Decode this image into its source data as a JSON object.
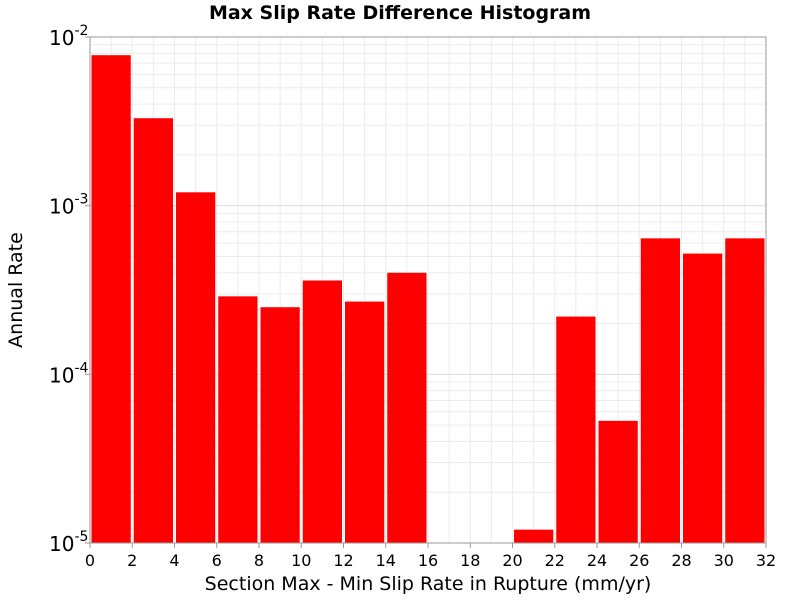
{
  "chart_data": {
    "type": "bar",
    "title": "Max Slip Rate Difference Histogram",
    "xlabel": "Section Max - Min Slip Rate in Rupture (mm/yr)",
    "ylabel": "Annual Rate",
    "x_ticks": [
      "0",
      "2",
      "4",
      "6",
      "8",
      "10",
      "12",
      "14",
      "16",
      "18",
      "20",
      "22",
      "24",
      "26",
      "28",
      "30",
      "32"
    ],
    "y_ticks": [
      {
        "base": "10",
        "exp": "-5",
        "value": 1e-05
      },
      {
        "base": "10",
        "exp": "-4",
        "value": 0.0001
      },
      {
        "base": "10",
        "exp": "-3",
        "value": 0.001
      },
      {
        "base": "10",
        "exp": "-2",
        "value": 0.01
      }
    ],
    "xlim": [
      0,
      32
    ],
    "ylim": [
      1e-05,
      0.01
    ],
    "y_scale": "log",
    "grid": true,
    "bar_color": "#ff0000",
    "bin_width": 2,
    "bins": [
      {
        "x": 1,
        "value": 0.0078
      },
      {
        "x": 3,
        "value": 0.0033
      },
      {
        "x": 5,
        "value": 0.0012
      },
      {
        "x": 7,
        "value": 0.00029
      },
      {
        "x": 9,
        "value": 0.00025
      },
      {
        "x": 11,
        "value": 0.00036
      },
      {
        "x": 13,
        "value": 0.00027
      },
      {
        "x": 15,
        "value": 0.0004
      },
      {
        "x": 17,
        "value": 0
      },
      {
        "x": 19,
        "value": 0
      },
      {
        "x": 21,
        "value": 1.2e-05
      },
      {
        "x": 23,
        "value": 0.00022
      },
      {
        "x": 25,
        "value": 5.3e-05
      },
      {
        "x": 27,
        "value": 0.00064
      },
      {
        "x": 29,
        "value": 0.00052
      },
      {
        "x": 31,
        "value": 0.00064
      }
    ]
  }
}
